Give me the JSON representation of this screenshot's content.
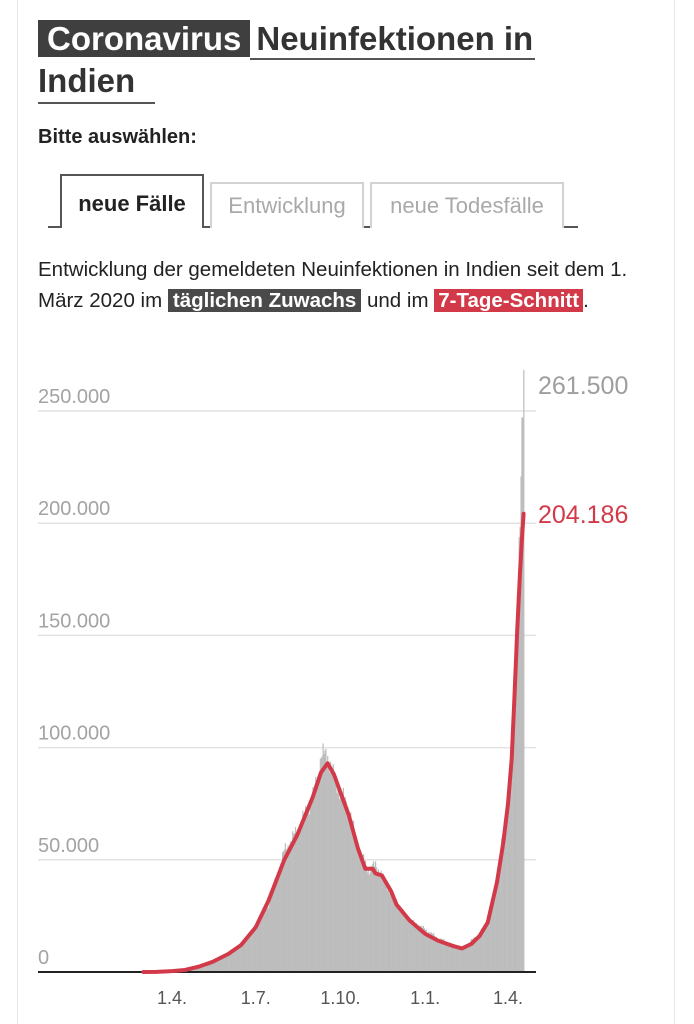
{
  "title": {
    "kicker": "Coronavirus",
    "text_line1": "Neuinfektionen in",
    "text_line2": "Indien"
  },
  "select_label": "Bitte auswählen:",
  "tabs": [
    {
      "label": "neue Fälle",
      "active": true
    },
    {
      "label": "Entwicklung",
      "active": false
    },
    {
      "label": "neue Todesfälle",
      "active": false
    }
  ],
  "description": {
    "part1": "Entwicklung der gemeldeten Neuinfektionen in Indien seit dem 1. März 2020 im ",
    "highlight1": "täglichen Zuwachs",
    "part2": " und im ",
    "highlight2": "7-Tage-Schnitt",
    "part3": "."
  },
  "colors": {
    "bars": "#bdbdbd",
    "avg_line": "#d23a4a",
    "highlight_dark": "#4a4a4a"
  },
  "chart_data": {
    "type": "bar",
    "ylim": [
      0,
      250000
    ],
    "y_ticks": [
      {
        "value": 0,
        "label": "0"
      },
      {
        "value": 50000,
        "label": "50.000"
      },
      {
        "value": 100000,
        "label": "100.000"
      },
      {
        "value": 150000,
        "label": "150.000"
      },
      {
        "value": 200000,
        "label": "200.000"
      },
      {
        "value": 250000,
        "label": "250.000"
      }
    ],
    "x_ticks": [
      {
        "date": "2020-04-01",
        "label": "1.4."
      },
      {
        "date": "2020-07-01",
        "label": "1.7."
      },
      {
        "date": "2020-10-01",
        "label": "1.10."
      },
      {
        "date": "2021-01-01",
        "label": "1.1."
      },
      {
        "date": "2021-04-01",
        "label": "1.4."
      }
    ],
    "x_range": [
      "2020-03-01",
      "2021-04-18"
    ],
    "series": [
      {
        "kind": "bars",
        "points": [
          [
            "2020-03-01",
            0
          ],
          [
            "2020-03-15",
            50
          ],
          [
            "2020-04-01",
            500
          ],
          [
            "2020-04-15",
            1000
          ],
          [
            "2020-05-01",
            2000
          ],
          [
            "2020-05-15",
            4000
          ],
          [
            "2020-06-01",
            8000
          ],
          [
            "2020-06-15",
            12000
          ],
          [
            "2020-07-01",
            20000
          ],
          [
            "2020-07-15",
            30000
          ],
          [
            "2020-08-01",
            54000
          ],
          [
            "2020-08-15",
            63000
          ],
          [
            "2020-09-01",
            78000
          ],
          [
            "2020-09-10",
            96000
          ],
          [
            "2020-09-17",
            97000
          ],
          [
            "2020-09-24",
            86000
          ],
          [
            "2020-10-01",
            80000
          ],
          [
            "2020-10-10",
            73000
          ],
          [
            "2020-10-20",
            55000
          ],
          [
            "2020-11-01",
            45000
          ],
          [
            "2020-11-08",
            48000
          ],
          [
            "2020-11-15",
            43000
          ],
          [
            "2020-12-01",
            30000
          ],
          [
            "2020-12-15",
            23000
          ],
          [
            "2021-01-01",
            19000
          ],
          [
            "2021-01-15",
            15000
          ],
          [
            "2021-02-01",
            12000
          ],
          [
            "2021-02-10",
            10000
          ],
          [
            "2021-02-20",
            14000
          ],
          [
            "2021-03-01",
            17000
          ],
          [
            "2021-03-10",
            23000
          ],
          [
            "2021-03-20",
            42000
          ],
          [
            "2021-03-27",
            62000
          ],
          [
            "2021-04-01",
            81000
          ],
          [
            "2021-04-05",
            103000
          ],
          [
            "2021-04-08",
            131000
          ],
          [
            "2021-04-11",
            169000
          ],
          [
            "2021-04-14",
            200000
          ],
          [
            "2021-04-16",
            234000
          ],
          [
            "2021-04-18",
            261500
          ]
        ]
      },
      {
        "kind": "line",
        "points": [
          [
            "2020-03-01",
            0
          ],
          [
            "2020-03-15",
            30
          ],
          [
            "2020-04-01",
            400
          ],
          [
            "2020-04-15",
            900
          ],
          [
            "2020-05-01",
            2500
          ],
          [
            "2020-05-15",
            4500
          ],
          [
            "2020-06-01",
            8000
          ],
          [
            "2020-06-15",
            12000
          ],
          [
            "2020-07-01",
            20000
          ],
          [
            "2020-07-15",
            32000
          ],
          [
            "2020-08-01",
            50000
          ],
          [
            "2020-08-15",
            61000
          ],
          [
            "2020-09-01",
            78000
          ],
          [
            "2020-09-10",
            89000
          ],
          [
            "2020-09-17",
            93000
          ],
          [
            "2020-09-24",
            88000
          ],
          [
            "2020-10-01",
            80000
          ],
          [
            "2020-10-10",
            70000
          ],
          [
            "2020-10-20",
            55000
          ],
          [
            "2020-10-28",
            46000
          ],
          [
            "2020-11-05",
            46000
          ],
          [
            "2020-11-08",
            44000
          ],
          [
            "2020-11-15",
            43000
          ],
          [
            "2020-11-25",
            36000
          ],
          [
            "2020-12-01",
            30000
          ],
          [
            "2020-12-15",
            23000
          ],
          [
            "2021-01-01",
            17000
          ],
          [
            "2021-01-15",
            14000
          ],
          [
            "2021-02-01",
            11500
          ],
          [
            "2021-02-10",
            10500
          ],
          [
            "2021-02-20",
            12500
          ],
          [
            "2021-03-01",
            16000
          ],
          [
            "2021-03-10",
            22000
          ],
          [
            "2021-03-20",
            40000
          ],
          [
            "2021-03-27",
            58000
          ],
          [
            "2021-04-01",
            75000
          ],
          [
            "2021-04-05",
            95000
          ],
          [
            "2021-04-08",
            122000
          ],
          [
            "2021-04-11",
            152000
          ],
          [
            "2021-04-14",
            178000
          ],
          [
            "2021-04-16",
            192000
          ],
          [
            "2021-04-18",
            204186
          ]
        ]
      }
    ],
    "end_labels": {
      "bars": "261.500",
      "line": "204.186"
    }
  }
}
